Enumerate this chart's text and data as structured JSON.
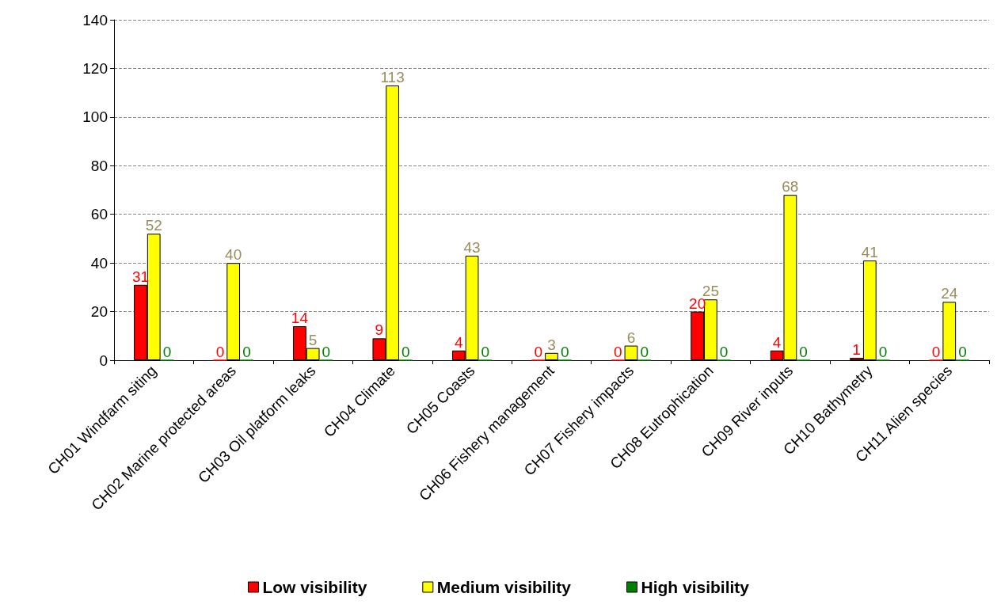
{
  "chart_data": {
    "type": "bar",
    "categories": [
      "CH01 Windfarm siting",
      "CH02 Marine protected areas",
      "CH03 Oil platform leaks",
      "CH04 Climate",
      "CH05 Coasts",
      "CH06 Fishery management",
      "CH07 Fishery impacts",
      "CH08 Eutrophication",
      "CH09 River inputs",
      "CH10 Bathymetry",
      "CH11 Alien species"
    ],
    "series": [
      {
        "name": "Low visibility",
        "color": "#ff0000",
        "values": [
          31,
          0,
          14,
          9,
          4,
          0,
          0,
          20,
          4,
          1,
          0
        ]
      },
      {
        "name": "Medium visibility",
        "color": "#ffff00",
        "values": [
          52,
          40,
          5,
          113,
          43,
          3,
          6,
          25,
          68,
          41,
          24
        ]
      },
      {
        "name": "High visibility",
        "color": "#008000",
        "values": [
          0,
          0,
          0,
          0,
          0,
          0,
          0,
          0,
          0,
          0,
          0
        ]
      }
    ],
    "ylim": [
      0,
      140
    ],
    "yticks": [
      0,
      20,
      40,
      60,
      80,
      100,
      120,
      140
    ],
    "grid": "y",
    "legend": "bottom",
    "data_labels": true
  }
}
